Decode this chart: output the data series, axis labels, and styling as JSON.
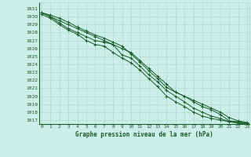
{
  "title": "Graphe pression niveau de la mer (hPa)",
  "bg_color": "#cceee8",
  "grid_color": "#aaddcc",
  "line_color": "#1a5c2a",
  "text_color": "#1a5c2a",
  "x_ticks": [
    0,
    1,
    2,
    3,
    4,
    5,
    6,
    7,
    8,
    9,
    10,
    11,
    12,
    13,
    14,
    15,
    16,
    17,
    18,
    19,
    20,
    21,
    22,
    23
  ],
  "y_ticks": [
    1017,
    1018,
    1019,
    1020,
    1021,
    1022,
    1023,
    1024,
    1025,
    1026,
    1027,
    1028,
    1029,
    1030,
    1031
  ],
  "ylim": [
    1016.5,
    1031.8
  ],
  "xlim": [
    -0.3,
    23.3
  ],
  "series": [
    [
      1030.5,
      1030.0,
      1029.5,
      1029.0,
      1028.5,
      1028.0,
      1027.5,
      1027.0,
      1026.5,
      1026.0,
      1025.5,
      1024.5,
      1023.5,
      1022.5,
      1021.5,
      1020.5,
      1020.0,
      1019.5,
      1019.0,
      1018.5,
      1018.0,
      1017.3,
      1016.9,
      1016.7
    ],
    [
      1030.5,
      1030.2,
      1029.8,
      1029.3,
      1028.7,
      1028.2,
      1027.7,
      1027.3,
      1026.8,
      1026.3,
      1025.3,
      1024.3,
      1023.2,
      1022.2,
      1021.1,
      1020.5,
      1020.0,
      1019.3,
      1018.7,
      1018.3,
      1017.7,
      1016.9,
      1016.8,
      1016.6
    ],
    [
      1030.5,
      1030.0,
      1029.2,
      1028.5,
      1028.0,
      1027.5,
      1027.0,
      1026.8,
      1026.5,
      1025.2,
      1024.8,
      1023.8,
      1022.7,
      1021.8,
      1020.7,
      1020.0,
      1019.3,
      1018.5,
      1018.0,
      1017.5,
      1017.2,
      1016.8,
      1016.6,
      1016.5
    ],
    [
      1030.3,
      1029.8,
      1029.0,
      1028.3,
      1027.8,
      1027.0,
      1026.5,
      1026.3,
      1025.5,
      1024.8,
      1024.2,
      1023.3,
      1022.2,
      1021.2,
      1020.0,
      1019.3,
      1018.7,
      1018.0,
      1017.5,
      1017.2,
      1017.0,
      1016.8,
      1016.7,
      1016.6
    ]
  ]
}
